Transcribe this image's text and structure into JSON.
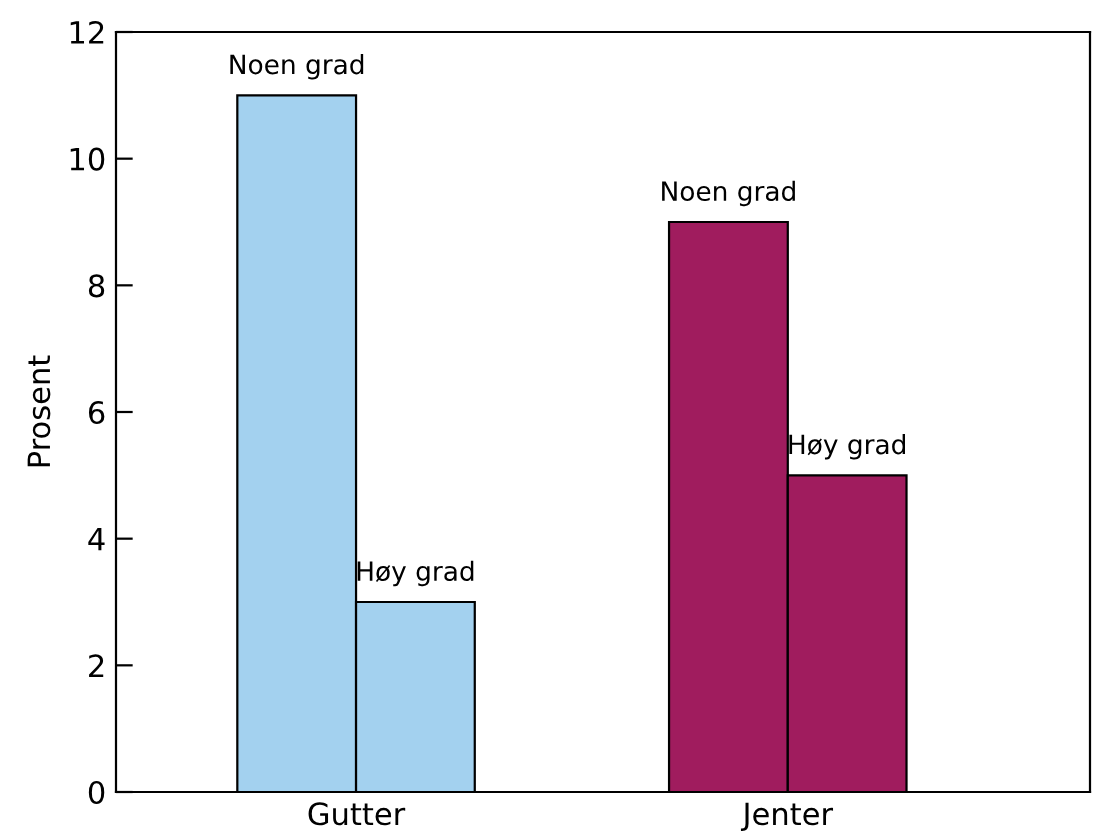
{
  "chart_data": {
    "type": "bar",
    "ylabel": "Prosent",
    "categories": [
      "Gutter",
      "Jenter"
    ],
    "series": [
      {
        "name": "Noen grad",
        "colors": [
          "#a3d1ef",
          "#a01c5e"
        ],
        "values": [
          11,
          9
        ]
      },
      {
        "name": "Høy grad",
        "colors": [
          "#a3d1ef",
          "#a01c5e"
        ],
        "values": [
          3,
          5
        ]
      }
    ],
    "ylim": [
      0,
      12
    ],
    "yticks": [
      0,
      2,
      4,
      6,
      8,
      10,
      12
    ],
    "grid": false,
    "legend": false
  }
}
